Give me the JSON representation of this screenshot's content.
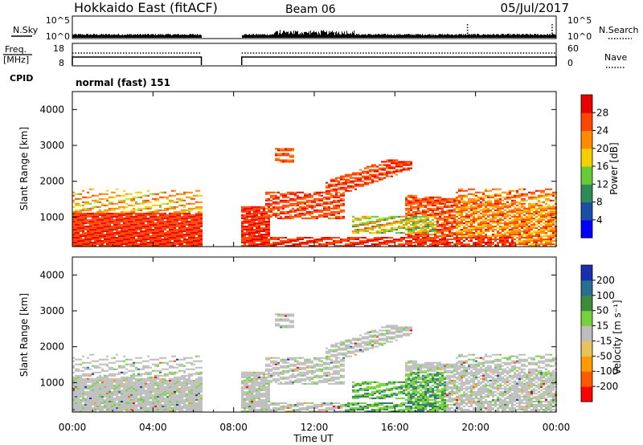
{
  "header": {
    "station": "Hokkaido East (fitACF)",
    "beam": "Beam 06",
    "date": "05/Jul/2017"
  },
  "param_panels": {
    "nsky": {
      "label": "N.Sky",
      "ticks": [
        "10^5",
        "10^0"
      ]
    },
    "nsearch": {
      "label": "N.Search",
      "ticks": [
        "10^5",
        "10^0"
      ]
    },
    "freq": {
      "label_line1": "Freq.",
      "label_line2": "[MHz]",
      "ticks": [
        "18",
        "8"
      ]
    },
    "nave": {
      "label": "Nave",
      "ticks": [
        "60",
        "0"
      ]
    },
    "cpid": {
      "label": "CPID",
      "value": "normal (fast) 151"
    }
  },
  "x_axis": {
    "label": "Time UT",
    "ticks": [
      "00:00",
      "04:00",
      "08:00",
      "12:00",
      "16:00",
      "20:00",
      "00:00"
    ]
  },
  "colors": {
    "power": [
      "#0000ff",
      "#1a4fa8",
      "#2e8b57",
      "#66cc33",
      "#f4d000",
      "#ff8c00",
      "#ff4500",
      "#e80000"
    ],
    "velocity": [
      "#ff0000",
      "#ff5a00",
      "#ff9a00",
      "#e6c35c",
      "#bebebe",
      "#76d23c",
      "#3c8c3c",
      "#2a6f8f",
      "#1a2fb0"
    ]
  },
  "chart_data": [
    {
      "type": "heatmap",
      "title": "Power",
      "ylabel": "Slant Range [km]",
      "y_ticks": [
        "1000",
        "2000",
        "3000",
        "4000"
      ],
      "ylim": [
        180,
        4500
      ],
      "xlim_hours": [
        0,
        24
      ],
      "data_gap_hours": [
        6.4,
        8.4
      ],
      "colorbar": {
        "label": "Power [dB]",
        "ticks": [
          "4",
          "8",
          "12",
          "16",
          "20",
          "24",
          "28"
        ],
        "range": [
          0,
          30
        ]
      }
    },
    {
      "type": "heatmap",
      "title": "Velocity",
      "ylabel": "Slant Range [km]",
      "y_ticks": [
        "1000",
        "2000",
        "3000",
        "4000"
      ],
      "ylim": [
        180,
        4500
      ],
      "xlim_hours": [
        0,
        24
      ],
      "data_gap_hours": [
        6.4,
        8.4
      ],
      "colorbar": {
        "label": "Velocity [m s⁻¹]",
        "ticks": [
          "200",
          "100",
          "50",
          "15",
          "-15",
          "-50",
          "-100",
          "-200"
        ]
      }
    }
  ]
}
